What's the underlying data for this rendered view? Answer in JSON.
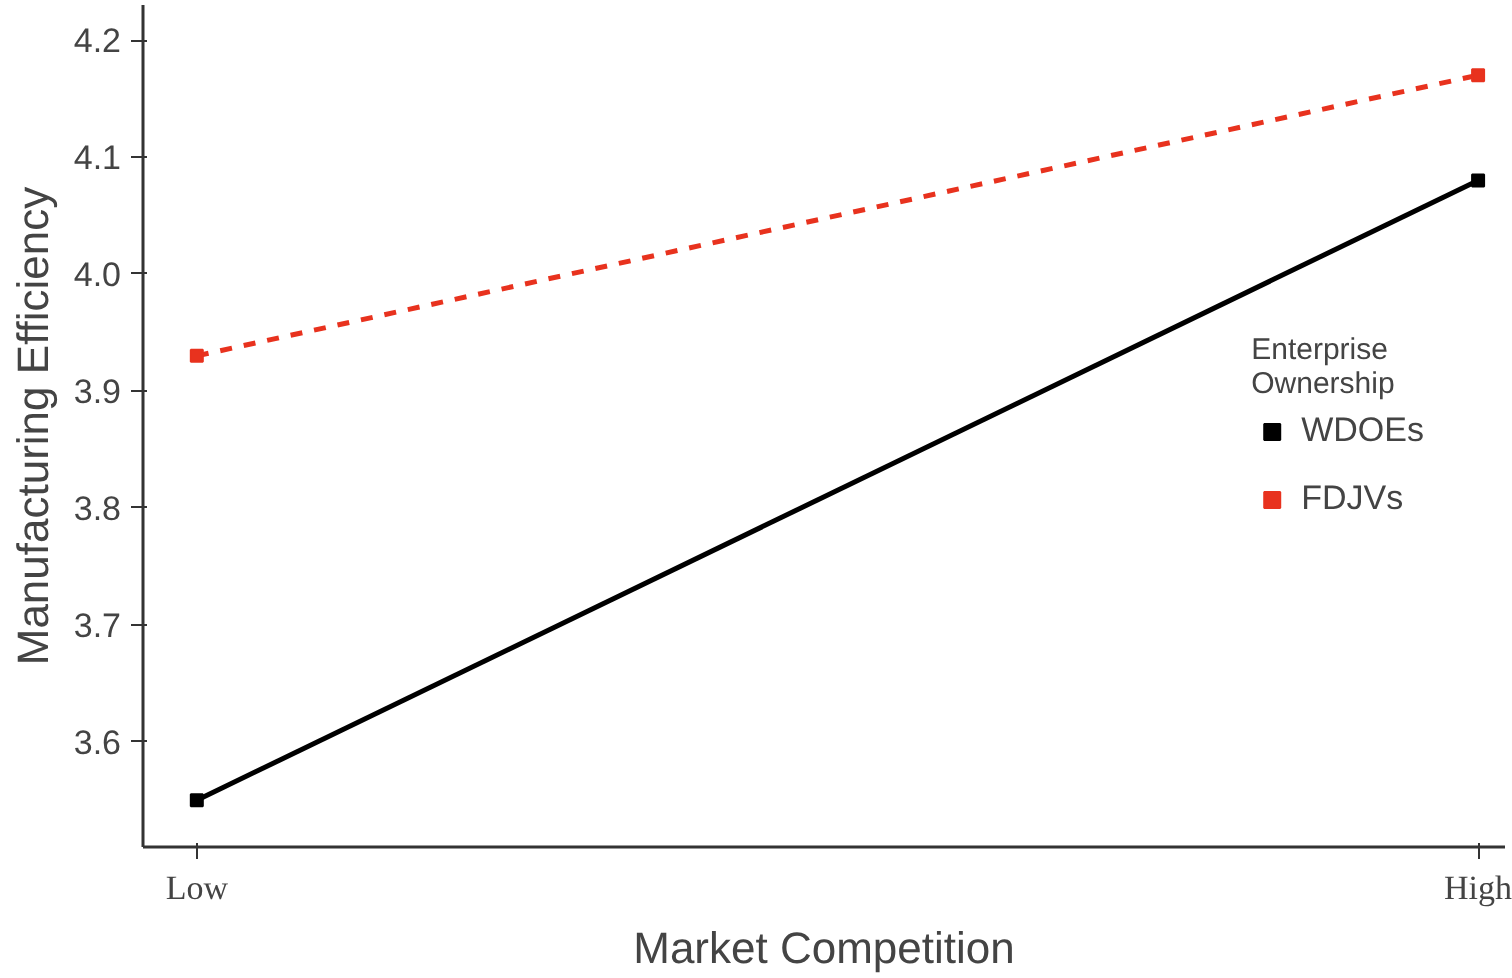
{
  "chart_data": {
    "type": "line",
    "xlabel": "Market Competition",
    "ylabel": "Manufacturing Efficiency",
    "legend_title": "Enterprise Ownership",
    "categories": [
      "Low",
      "High"
    ],
    "series": [
      {
        "name": "WDOEs",
        "color": "#000000",
        "values": [
          3.55,
          4.08
        ],
        "line_style": "solid"
      },
      {
        "name": "FDJVs",
        "color": "#e8321e",
        "values": [
          3.93,
          4.17
        ],
        "line_style": "dashed"
      }
    ],
    "ylim": [
      3.51,
      4.23
    ],
    "yticks": [
      3.6,
      3.7,
      3.8,
      3.9,
      {
        "value": 4.0,
        "label": "4.0"
      },
      4.1,
      4.2
    ],
    "grid": false,
    "legend": "right",
    "marker": "square"
  }
}
